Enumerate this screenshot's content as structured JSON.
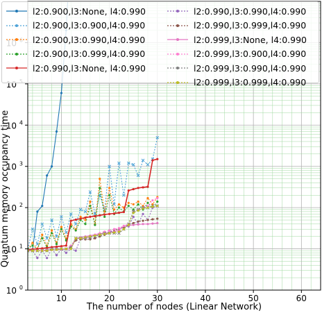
{
  "chart_data": {
    "type": "line",
    "title": "",
    "xlabel": "The number of nodes (Linear Network)",
    "ylabel": "Quantum memory occupancy time",
    "xlim": [
      3,
      64
    ],
    "ylim_log10": [
      0,
      7
    ],
    "yscale": "log",
    "grid": true,
    "legend_position": "top",
    "x_ticks": [
      10,
      20,
      30,
      40,
      50,
      60
    ],
    "y_ticks": [
      {
        "base": "10",
        "exp": "0"
      },
      {
        "base": "10",
        "exp": "1"
      },
      {
        "base": "10",
        "exp": "2"
      },
      {
        "base": "10",
        "exp": "3"
      },
      {
        "base": "10",
        "exp": "4"
      },
      {
        "base": "10",
        "exp": "5"
      },
      {
        "base": "10",
        "exp": "6"
      }
    ],
    "series": [
      {
        "name": "l2:0.900,l3:None,  l4:0.990",
        "color": "#1f77b4",
        "dash": "",
        "marker": "dot",
        "x": [
          3,
          4,
          5,
          6,
          7,
          8,
          9,
          10,
          11,
          12
        ],
        "y": [
          9,
          9,
          80,
          110,
          600,
          1000,
          7000,
          60000,
          2000000,
          300000000
        ]
      },
      {
        "name": "l2:0.900,l3:0.900,l4:0.990",
        "color": "#4fa3d8",
        "dash": "2,2",
        "marker": "x",
        "x": [
          3,
          4,
          5,
          6,
          7,
          8,
          9,
          10,
          11,
          12,
          13,
          14,
          15,
          16,
          17,
          18,
          19,
          20,
          21,
          22,
          23,
          24,
          25,
          26,
          27,
          28,
          29,
          30
        ],
        "y": [
          10,
          30,
          13,
          40,
          18,
          50,
          20,
          60,
          25,
          70,
          40,
          90,
          80,
          240,
          70,
          200,
          90,
          1000,
          120,
          1200,
          200,
          1200,
          1100,
          600,
          1400,
          1100,
          1500,
          5000
        ]
      },
      {
        "name": "l2:0.900,l3:0.990,l4:0.990",
        "color": "#ff7f0e",
        "dash": "2,2",
        "marker": "dot",
        "x": [
          3,
          4,
          5,
          6,
          7,
          8,
          9,
          10,
          11,
          12,
          13,
          14,
          15,
          16,
          17,
          18,
          19,
          20,
          21,
          22,
          23,
          24,
          25,
          26,
          27,
          28,
          29,
          30
        ],
        "y": [
          10,
          14,
          10,
          22,
          12,
          28,
          14,
          34,
          18,
          40,
          30,
          60,
          50,
          140,
          40,
          500,
          80,
          300,
          90,
          120,
          100,
          130,
          120,
          140,
          110,
          170,
          120,
          180
        ]
      },
      {
        "name": "l2:0.900,l3:0.999,l4:0.990",
        "color": "#2ca02c",
        "dash": "2,2",
        "marker": "dot",
        "x": [
          3,
          4,
          5,
          6,
          7,
          8,
          9,
          10,
          11,
          12,
          13,
          14,
          15,
          16,
          17,
          18,
          19,
          20,
          21,
          22,
          23,
          24,
          25,
          26,
          27,
          28,
          29,
          30
        ],
        "y": [
          10,
          12,
          10,
          18,
          11,
          24,
          13,
          30,
          16,
          35,
          28,
          50,
          40,
          110,
          38,
          300,
          60,
          200,
          70,
          100,
          80,
          110,
          90,
          120,
          90,
          130,
          100,
          140
        ]
      },
      {
        "name": "l2:0.990,l3:None,  l4:0.990",
        "color": "#d62728",
        "dash": "",
        "marker": "dot",
        "x": [
          3,
          4,
          5,
          6,
          7,
          8,
          9,
          10,
          11,
          12,
          13,
          14,
          15,
          16,
          17,
          18,
          19,
          20,
          21,
          22,
          23,
          24,
          25,
          26,
          27,
          28,
          29,
          30
        ],
        "y": [
          9.5,
          9.8,
          10,
          10.3,
          10.6,
          11,
          11.3,
          11.6,
          12,
          48,
          51,
          54,
          57,
          60,
          62,
          65,
          68,
          70,
          72,
          75,
          78,
          260,
          280,
          300,
          310,
          320,
          1400,
          1500
        ]
      },
      {
        "name": "l2:0.990,l3:0.990,l4:0.990",
        "color": "#9467bd",
        "dash": "2,2",
        "marker": "dot",
        "x": [
          3,
          4,
          5,
          6,
          7,
          8,
          9,
          10,
          11,
          12,
          13,
          14,
          15,
          16,
          17,
          18,
          19,
          20,
          21,
          22,
          23,
          24,
          25,
          26,
          27,
          28,
          29,
          30
        ],
        "y": [
          9,
          9,
          6,
          9,
          6,
          10,
          7,
          10,
          8,
          10,
          9,
          18,
          18,
          20,
          22,
          22,
          24,
          25,
          30,
          30,
          35,
          35,
          60,
          40,
          70,
          50,
          100,
          110
        ]
      },
      {
        "name": "l2:0.990,l3:0.999,l4:0.990",
        "color": "#8c564b",
        "dash": "2,2",
        "marker": "dot",
        "x": [
          3,
          4,
          5,
          6,
          7,
          8,
          9,
          10,
          11,
          12,
          13,
          14,
          15,
          16,
          17,
          18,
          19,
          20,
          21,
          22,
          23,
          24,
          25,
          26,
          27,
          28,
          29,
          30
        ],
        "y": [
          9,
          9,
          9,
          9,
          9,
          10,
          10,
          10,
          10,
          11,
          16,
          17,
          17,
          17,
          18,
          20,
          22,
          24,
          28,
          30,
          34,
          38,
          42,
          46,
          48,
          50,
          52,
          54
        ]
      },
      {
        "name": "l2:0.999,l3:None,  l4:0.990",
        "color": "#e377c2",
        "dash": "",
        "marker": "dot",
        "x": [
          3,
          4,
          5,
          6,
          7,
          8,
          9,
          10,
          11,
          12,
          13,
          14,
          15,
          16,
          17,
          18,
          19,
          20,
          21,
          22,
          23,
          24,
          25,
          26,
          27,
          28,
          29,
          30
        ],
        "y": [
          9,
          9,
          9,
          9.2,
          9.3,
          9.4,
          9.5,
          9.6,
          9.8,
          10,
          18,
          19,
          20,
          21,
          22,
          23,
          24,
          25,
          26,
          28,
          36,
          37,
          38,
          39,
          40,
          40,
          41,
          42
        ]
      },
      {
        "name": "l2:0.999,l3:0.900,l4:0.990",
        "color": "#ff7fd0",
        "dash": "2,2",
        "marker": "dot",
        "x": [
          3,
          4,
          5,
          6,
          7,
          8,
          9,
          10,
          11,
          12,
          13,
          14,
          15,
          16,
          17,
          18,
          19,
          20,
          21,
          22,
          23,
          24,
          25,
          26,
          27,
          28,
          29,
          30
        ],
        "y": [
          9,
          9,
          9,
          9,
          9,
          10,
          10,
          10,
          10,
          12,
          18,
          18,
          18,
          20,
          22,
          24,
          26,
          28,
          30,
          32,
          36,
          40,
          80,
          90,
          100,
          110,
          150,
          170
        ]
      },
      {
        "name": "l2:0.999,l3:0.990,l4:0.990",
        "color": "#7f7f7f",
        "dash": "2,2",
        "marker": "x",
        "x": [
          3,
          4,
          5,
          6,
          7,
          8,
          9,
          10,
          11,
          12,
          13,
          14,
          15,
          16,
          17,
          18,
          19,
          20,
          21,
          22,
          23,
          24,
          25,
          26,
          27,
          28,
          29,
          30
        ],
        "y": [
          9,
          9,
          9,
          9,
          9,
          10,
          10,
          10,
          10,
          11,
          18,
          18,
          18,
          19,
          20,
          22,
          24,
          24,
          24,
          24,
          30,
          40,
          80,
          90,
          100,
          100,
          110,
          110
        ]
      },
      {
        "name": "l2:0.999,l3:0.999,l4:0.990",
        "color": "#bcbd22",
        "dash": "2,2",
        "marker": "dot",
        "x": [
          3,
          4,
          5,
          6,
          7,
          8,
          9,
          10,
          11,
          12,
          13,
          14,
          15,
          16,
          17,
          18,
          19,
          20,
          21,
          22,
          23,
          24,
          25,
          26,
          27,
          28,
          29,
          30
        ],
        "y": [
          9,
          9,
          9,
          9,
          9,
          9.5,
          9.5,
          10,
          10,
          10,
          18,
          18,
          19,
          20,
          21,
          22,
          23,
          24,
          25,
          26,
          30,
          38,
          75,
          85,
          95,
          100,
          105,
          110
        ]
      }
    ]
  }
}
